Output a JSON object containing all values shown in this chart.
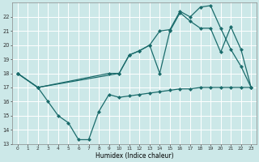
{
  "xlabel": "Humidex (Indice chaleur)",
  "bg_color": "#cce8e8",
  "grid_color": "#ffffff",
  "line_color": "#1a6b6b",
  "xlim": [
    -0.5,
    23.5
  ],
  "ylim": [
    13,
    23
  ],
  "yticks": [
    13,
    14,
    15,
    16,
    17,
    18,
    19,
    20,
    21,
    22
  ],
  "xticks": [
    0,
    1,
    2,
    3,
    4,
    5,
    6,
    7,
    8,
    9,
    10,
    11,
    12,
    13,
    14,
    15,
    16,
    17,
    18,
    19,
    20,
    21,
    22,
    23
  ],
  "line1_x": [
    0,
    2,
    3,
    4,
    5,
    6,
    7,
    8,
    9,
    10,
    11,
    12,
    13,
    14,
    15,
    16,
    17,
    18,
    19,
    20,
    21,
    22,
    23
  ],
  "line1_y": [
    18,
    17,
    16,
    15,
    14.5,
    13.3,
    13.3,
    15.3,
    16.5,
    16.3,
    16.4,
    16.5,
    16.6,
    16.7,
    16.8,
    16.9,
    16.9,
    17.0,
    17.0,
    17.0,
    17.0,
    17.0,
    17.0
  ],
  "line2_x": [
    0,
    2,
    10,
    11,
    12,
    13,
    14,
    15,
    16,
    17,
    18,
    19,
    20,
    21,
    22,
    23
  ],
  "line2_y": [
    18,
    17,
    18,
    19.3,
    19.6,
    20.0,
    18.0,
    21.0,
    22.3,
    21.7,
    21.2,
    21.2,
    19.5,
    21.3,
    19.7,
    17.0
  ],
  "line3_x": [
    0,
    2,
    9,
    10,
    11,
    12,
    13,
    14,
    15,
    16,
    17,
    18,
    19,
    20,
    21,
    22,
    23
  ],
  "line3_y": [
    18,
    17,
    18,
    18.0,
    19.3,
    19.6,
    20.0,
    21.0,
    21.1,
    22.4,
    22.0,
    22.7,
    22.8,
    21.2,
    19.7,
    18.5,
    17.0
  ]
}
